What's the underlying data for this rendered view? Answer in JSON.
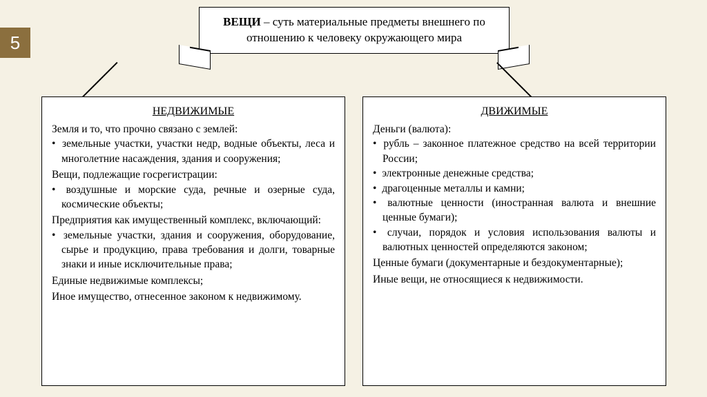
{
  "slide_number": "5",
  "banner_bold": "ВЕЩИ",
  "banner_rest": " – суть материальные предметы внешнего по отношению к человеку окружающего мира",
  "left": {
    "title": "НЕДВИЖИМЫЕ",
    "lead1": "Земля и то, что прочно связано с землей:",
    "b1": "земельные участки, участки недр, водные объекты, леса и многолетние насаждения, здания и сооружения;",
    "lead2": "Вещи, подлежащие госрегистрации:",
    "b2": "воздушные и морские суда, речные и озерные суда, космические объекты;",
    "lead3": "Предприятия как имущественный комплекс, включающий:",
    "b3": "земельные участки, здания и сооружения, оборудование, сырье и продукцию, права требования и долги, товарные знаки и иные исключительные права;",
    "l4": "Единые недвижимые комплексы;",
    "l5": "Иное имущество, отнесенное законом к недвижимому."
  },
  "right": {
    "title": "ДВИЖИМЫЕ",
    "lead1": "Деньги (валюта):",
    "d1": "рубль – законное платежное средство на всей территории России;",
    "d2": "электронные денежные средства;",
    "d3": "драгоценные металлы и камни;",
    "d4": "валютные ценности (иностранная валюта и внешние ценные бумаги);",
    "d5": "случаи, порядок и условия использования валюты и валютных ценностей определяются законом;",
    "l2": "Ценные бумаги (документарные и бездокументарные);",
    "l3": "Иные вещи, не относящиеся к недвижимости."
  }
}
